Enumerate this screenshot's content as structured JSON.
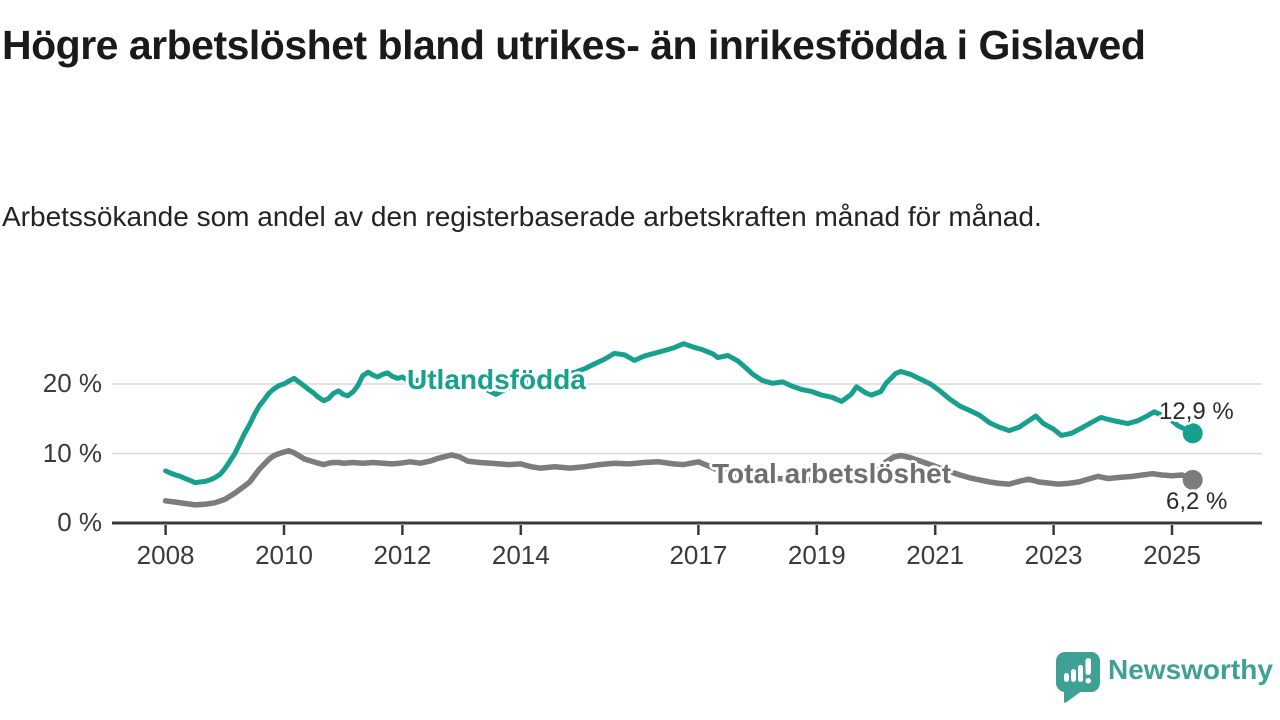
{
  "header": {
    "title": "Högre arbetslöshet bland utrikes- än inrikesfödda i Gislaved",
    "subtitle": "Arbetssökande som andel av den registerbaserade arbetskraften månad för månad."
  },
  "chart_data": {
    "type": "line",
    "unit": "%",
    "title": "Högre arbetslöshet bland utrikes- än inrikesfödda i Gislaved",
    "xlabel": "",
    "ylabel": "Arbetssökande som andel av den registerbaserade arbetskraften",
    "x_axis": {
      "tick_years": [
        2008,
        2010,
        2012,
        2014,
        2017,
        2019,
        2021,
        2023,
        2025
      ],
      "tick_labels": [
        "2008",
        "2010",
        "2012",
        "2014",
        "2017",
        "2019",
        "2021",
        "2023",
        "2025"
      ],
      "range": [
        2007.1,
        2026.5
      ]
    },
    "y_axis": {
      "ticks": [
        0,
        10,
        20
      ],
      "tick_labels": [
        "0 %",
        "10 %",
        "20 %"
      ],
      "range": [
        0,
        27
      ],
      "gridlines": true
    },
    "legend_position": "inline-labels",
    "series": [
      {
        "name": "Utlandsfödda",
        "color": "#17A08E",
        "end_label": "12,9 %",
        "end_value": 12.9,
        "points": [
          [
            2008.0,
            7.5
          ],
          [
            2008.08,
            7.2
          ],
          [
            2008.17,
            6.9
          ],
          [
            2008.25,
            6.7
          ],
          [
            2008.33,
            6.4
          ],
          [
            2008.42,
            6.1
          ],
          [
            2008.5,
            5.8
          ],
          [
            2008.58,
            5.9
          ],
          [
            2008.67,
            6.0
          ],
          [
            2008.75,
            6.2
          ],
          [
            2008.83,
            6.5
          ],
          [
            2008.92,
            7.0
          ],
          [
            2009.0,
            7.8
          ],
          [
            2009.08,
            8.8
          ],
          [
            2009.17,
            10.0
          ],
          [
            2009.25,
            11.4
          ],
          [
            2009.33,
            12.8
          ],
          [
            2009.42,
            14.2
          ],
          [
            2009.5,
            15.6
          ],
          [
            2009.58,
            16.8
          ],
          [
            2009.67,
            17.8
          ],
          [
            2009.75,
            18.7
          ],
          [
            2009.83,
            19.3
          ],
          [
            2009.92,
            19.8
          ],
          [
            2010.0,
            20.0
          ],
          [
            2010.08,
            20.4
          ],
          [
            2010.17,
            20.8
          ],
          [
            2010.25,
            20.3
          ],
          [
            2010.33,
            19.8
          ],
          [
            2010.42,
            19.2
          ],
          [
            2010.5,
            18.7
          ],
          [
            2010.58,
            18.1
          ],
          [
            2010.67,
            17.6
          ],
          [
            2010.75,
            17.9
          ],
          [
            2010.83,
            18.6
          ],
          [
            2010.92,
            19.0
          ],
          [
            2011.0,
            18.5
          ],
          [
            2011.08,
            18.3
          ],
          [
            2011.17,
            18.9
          ],
          [
            2011.25,
            19.8
          ],
          [
            2011.33,
            21.2
          ],
          [
            2011.42,
            21.7
          ],
          [
            2011.5,
            21.3
          ],
          [
            2011.58,
            21.0
          ],
          [
            2011.67,
            21.4
          ],
          [
            2011.75,
            21.6
          ],
          [
            2011.83,
            21.1
          ],
          [
            2011.92,
            20.8
          ],
          [
            2012.0,
            21.0
          ],
          [
            2012.08,
            20.6
          ],
          [
            2012.17,
            20.2
          ],
          [
            2012.25,
            20.5
          ],
          [
            2012.33,
            20.8
          ],
          [
            2012.42,
            20.4
          ],
          [
            2012.58,
            20.6
          ],
          [
            2012.75,
            20.3
          ],
          [
            2012.92,
            20.6
          ],
          [
            2013.08,
            20.4
          ],
          [
            2013.25,
            20.0
          ],
          [
            2013.42,
            19.2
          ],
          [
            2013.58,
            18.5
          ],
          [
            2013.75,
            19.3
          ],
          [
            2013.92,
            20.0
          ],
          [
            2014.08,
            20.3
          ],
          [
            2014.25,
            20.6
          ],
          [
            2014.42,
            20.9
          ],
          [
            2014.58,
            21.1
          ],
          [
            2014.75,
            21.4
          ],
          [
            2014.92,
            21.7
          ],
          [
            2015.08,
            22.2
          ],
          [
            2015.25,
            22.9
          ],
          [
            2015.42,
            23.6
          ],
          [
            2015.58,
            24.4
          ],
          [
            2015.75,
            24.2
          ],
          [
            2015.92,
            23.4
          ],
          [
            2016.08,
            24.0
          ],
          [
            2016.25,
            24.4
          ],
          [
            2016.42,
            24.8
          ],
          [
            2016.58,
            25.2
          ],
          [
            2016.75,
            25.8
          ],
          [
            2016.92,
            25.3
          ],
          [
            2017.08,
            24.9
          ],
          [
            2017.25,
            24.3
          ],
          [
            2017.33,
            23.8
          ],
          [
            2017.5,
            24.1
          ],
          [
            2017.67,
            23.3
          ],
          [
            2017.79,
            22.4
          ],
          [
            2017.92,
            21.4
          ],
          [
            2018.08,
            20.5
          ],
          [
            2018.25,
            20.1
          ],
          [
            2018.42,
            20.3
          ],
          [
            2018.58,
            19.7
          ],
          [
            2018.75,
            19.2
          ],
          [
            2018.92,
            18.9
          ],
          [
            2019.08,
            18.4
          ],
          [
            2019.25,
            18.1
          ],
          [
            2019.42,
            17.5
          ],
          [
            2019.58,
            18.5
          ],
          [
            2019.67,
            19.6
          ],
          [
            2019.83,
            18.7
          ],
          [
            2019.92,
            18.4
          ],
          [
            2020.08,
            18.9
          ],
          [
            2020.17,
            20.1
          ],
          [
            2020.33,
            21.5
          ],
          [
            2020.42,
            21.8
          ],
          [
            2020.58,
            21.4
          ],
          [
            2020.75,
            20.7
          ],
          [
            2020.92,
            20.0
          ],
          [
            2021.08,
            19.0
          ],
          [
            2021.25,
            17.8
          ],
          [
            2021.42,
            16.8
          ],
          [
            2021.58,
            16.2
          ],
          [
            2021.75,
            15.5
          ],
          [
            2021.92,
            14.4
          ],
          [
            2022.08,
            13.8
          ],
          [
            2022.25,
            13.3
          ],
          [
            2022.42,
            13.8
          ],
          [
            2022.58,
            14.7
          ],
          [
            2022.7,
            15.4
          ],
          [
            2022.83,
            14.3
          ],
          [
            2023.0,
            13.5
          ],
          [
            2023.13,
            12.6
          ],
          [
            2023.3,
            12.9
          ],
          [
            2023.5,
            13.8
          ],
          [
            2023.67,
            14.6
          ],
          [
            2023.8,
            15.2
          ],
          [
            2023.92,
            14.9
          ],
          [
            2024.08,
            14.6
          ],
          [
            2024.25,
            14.3
          ],
          [
            2024.42,
            14.7
          ],
          [
            2024.58,
            15.4
          ],
          [
            2024.7,
            16.0
          ],
          [
            2024.83,
            15.5
          ],
          [
            2024.95,
            15.1
          ],
          [
            2025.1,
            14.0
          ],
          [
            2025.25,
            13.4
          ],
          [
            2025.35,
            12.9
          ]
        ]
      },
      {
        "name": "Total arbetslöshet",
        "color": "#7C7C7C",
        "end_label": "6,2 %",
        "end_value": 6.2,
        "points": [
          [
            2008.0,
            3.2
          ],
          [
            2008.17,
            3.0
          ],
          [
            2008.33,
            2.8
          ],
          [
            2008.5,
            2.6
          ],
          [
            2008.67,
            2.7
          ],
          [
            2008.83,
            2.9
          ],
          [
            2009.0,
            3.4
          ],
          [
            2009.17,
            4.3
          ],
          [
            2009.33,
            5.3
          ],
          [
            2009.42,
            5.9
          ],
          [
            2009.5,
            6.8
          ],
          [
            2009.58,
            7.7
          ],
          [
            2009.67,
            8.5
          ],
          [
            2009.75,
            9.2
          ],
          [
            2009.83,
            9.7
          ],
          [
            2009.92,
            10.0
          ],
          [
            2010.0,
            10.2
          ],
          [
            2010.08,
            10.4
          ],
          [
            2010.17,
            10.1
          ],
          [
            2010.25,
            9.7
          ],
          [
            2010.35,
            9.2
          ],
          [
            2010.42,
            9.0
          ],
          [
            2010.5,
            8.8
          ],
          [
            2010.58,
            8.6
          ],
          [
            2010.67,
            8.4
          ],
          [
            2010.75,
            8.6
          ],
          [
            2010.83,
            8.7
          ],
          [
            2010.92,
            8.7
          ],
          [
            2011.0,
            8.6
          ],
          [
            2011.17,
            8.7
          ],
          [
            2011.33,
            8.6
          ],
          [
            2011.5,
            8.7
          ],
          [
            2011.67,
            8.6
          ],
          [
            2011.83,
            8.5
          ],
          [
            2011.96,
            8.6
          ],
          [
            2012.13,
            8.8
          ],
          [
            2012.3,
            8.6
          ],
          [
            2012.47,
            8.9
          ],
          [
            2012.6,
            9.3
          ],
          [
            2012.83,
            9.8
          ],
          [
            2012.97,
            9.5
          ],
          [
            2013.1,
            8.9
          ],
          [
            2013.3,
            8.7
          ],
          [
            2013.5,
            8.6
          ],
          [
            2013.8,
            8.4
          ],
          [
            2014.0,
            8.5
          ],
          [
            2014.17,
            8.1
          ],
          [
            2014.33,
            7.9
          ],
          [
            2014.58,
            8.1
          ],
          [
            2014.83,
            7.9
          ],
          [
            2015.08,
            8.1
          ],
          [
            2015.33,
            8.4
          ],
          [
            2015.58,
            8.6
          ],
          [
            2015.83,
            8.5
          ],
          [
            2016.08,
            8.7
          ],
          [
            2016.33,
            8.8
          ],
          [
            2016.58,
            8.5
          ],
          [
            2016.75,
            8.4
          ],
          [
            2017.0,
            8.8
          ],
          [
            2017.17,
            8.2
          ],
          [
            2017.33,
            7.6
          ],
          [
            2017.58,
            7.1
          ],
          [
            2017.83,
            6.8
          ],
          [
            2018.08,
            6.6
          ],
          [
            2018.33,
            6.4
          ],
          [
            2018.58,
            6.3
          ],
          [
            2018.83,
            6.2
          ],
          [
            2019.08,
            6.3
          ],
          [
            2019.33,
            6.5
          ],
          [
            2019.58,
            6.6
          ],
          [
            2019.83,
            6.9
          ],
          [
            2020.0,
            7.6
          ],
          [
            2020.17,
            8.8
          ],
          [
            2020.3,
            9.5
          ],
          [
            2020.42,
            9.7
          ],
          [
            2020.58,
            9.4
          ],
          [
            2020.75,
            8.9
          ],
          [
            2020.92,
            8.4
          ],
          [
            2021.08,
            7.9
          ],
          [
            2021.25,
            7.4
          ],
          [
            2021.42,
            6.9
          ],
          [
            2021.58,
            6.5
          ],
          [
            2021.75,
            6.2
          ],
          [
            2021.92,
            5.9
          ],
          [
            2022.08,
            5.7
          ],
          [
            2022.25,
            5.6
          ],
          [
            2022.42,
            6.0
          ],
          [
            2022.58,
            6.3
          ],
          [
            2022.75,
            5.9
          ],
          [
            2023.08,
            5.6
          ],
          [
            2023.25,
            5.7
          ],
          [
            2023.42,
            5.9
          ],
          [
            2023.58,
            6.3
          ],
          [
            2023.75,
            6.7
          ],
          [
            2023.92,
            6.4
          ],
          [
            2024.17,
            6.6
          ],
          [
            2024.33,
            6.7
          ],
          [
            2024.5,
            6.9
          ],
          [
            2024.67,
            7.1
          ],
          [
            2024.83,
            6.9
          ],
          [
            2025.0,
            6.8
          ],
          [
            2025.17,
            6.9
          ],
          [
            2025.35,
            6.2
          ]
        ]
      }
    ]
  },
  "branding": {
    "logo_text": "Newsworthy",
    "brand_color": "#3FA096"
  },
  "colors": {
    "background": "#FFFFFF",
    "title": "#1A1A1A",
    "subtitle": "#232323",
    "axis_text": "#3A3A3A",
    "axis_line": "#3A3A3A",
    "gridline": "#D9D9D9",
    "series_utlandsfodda": "#17A08E",
    "series_total": "#7C7C7C",
    "value_label": "#2B2B2B"
  }
}
